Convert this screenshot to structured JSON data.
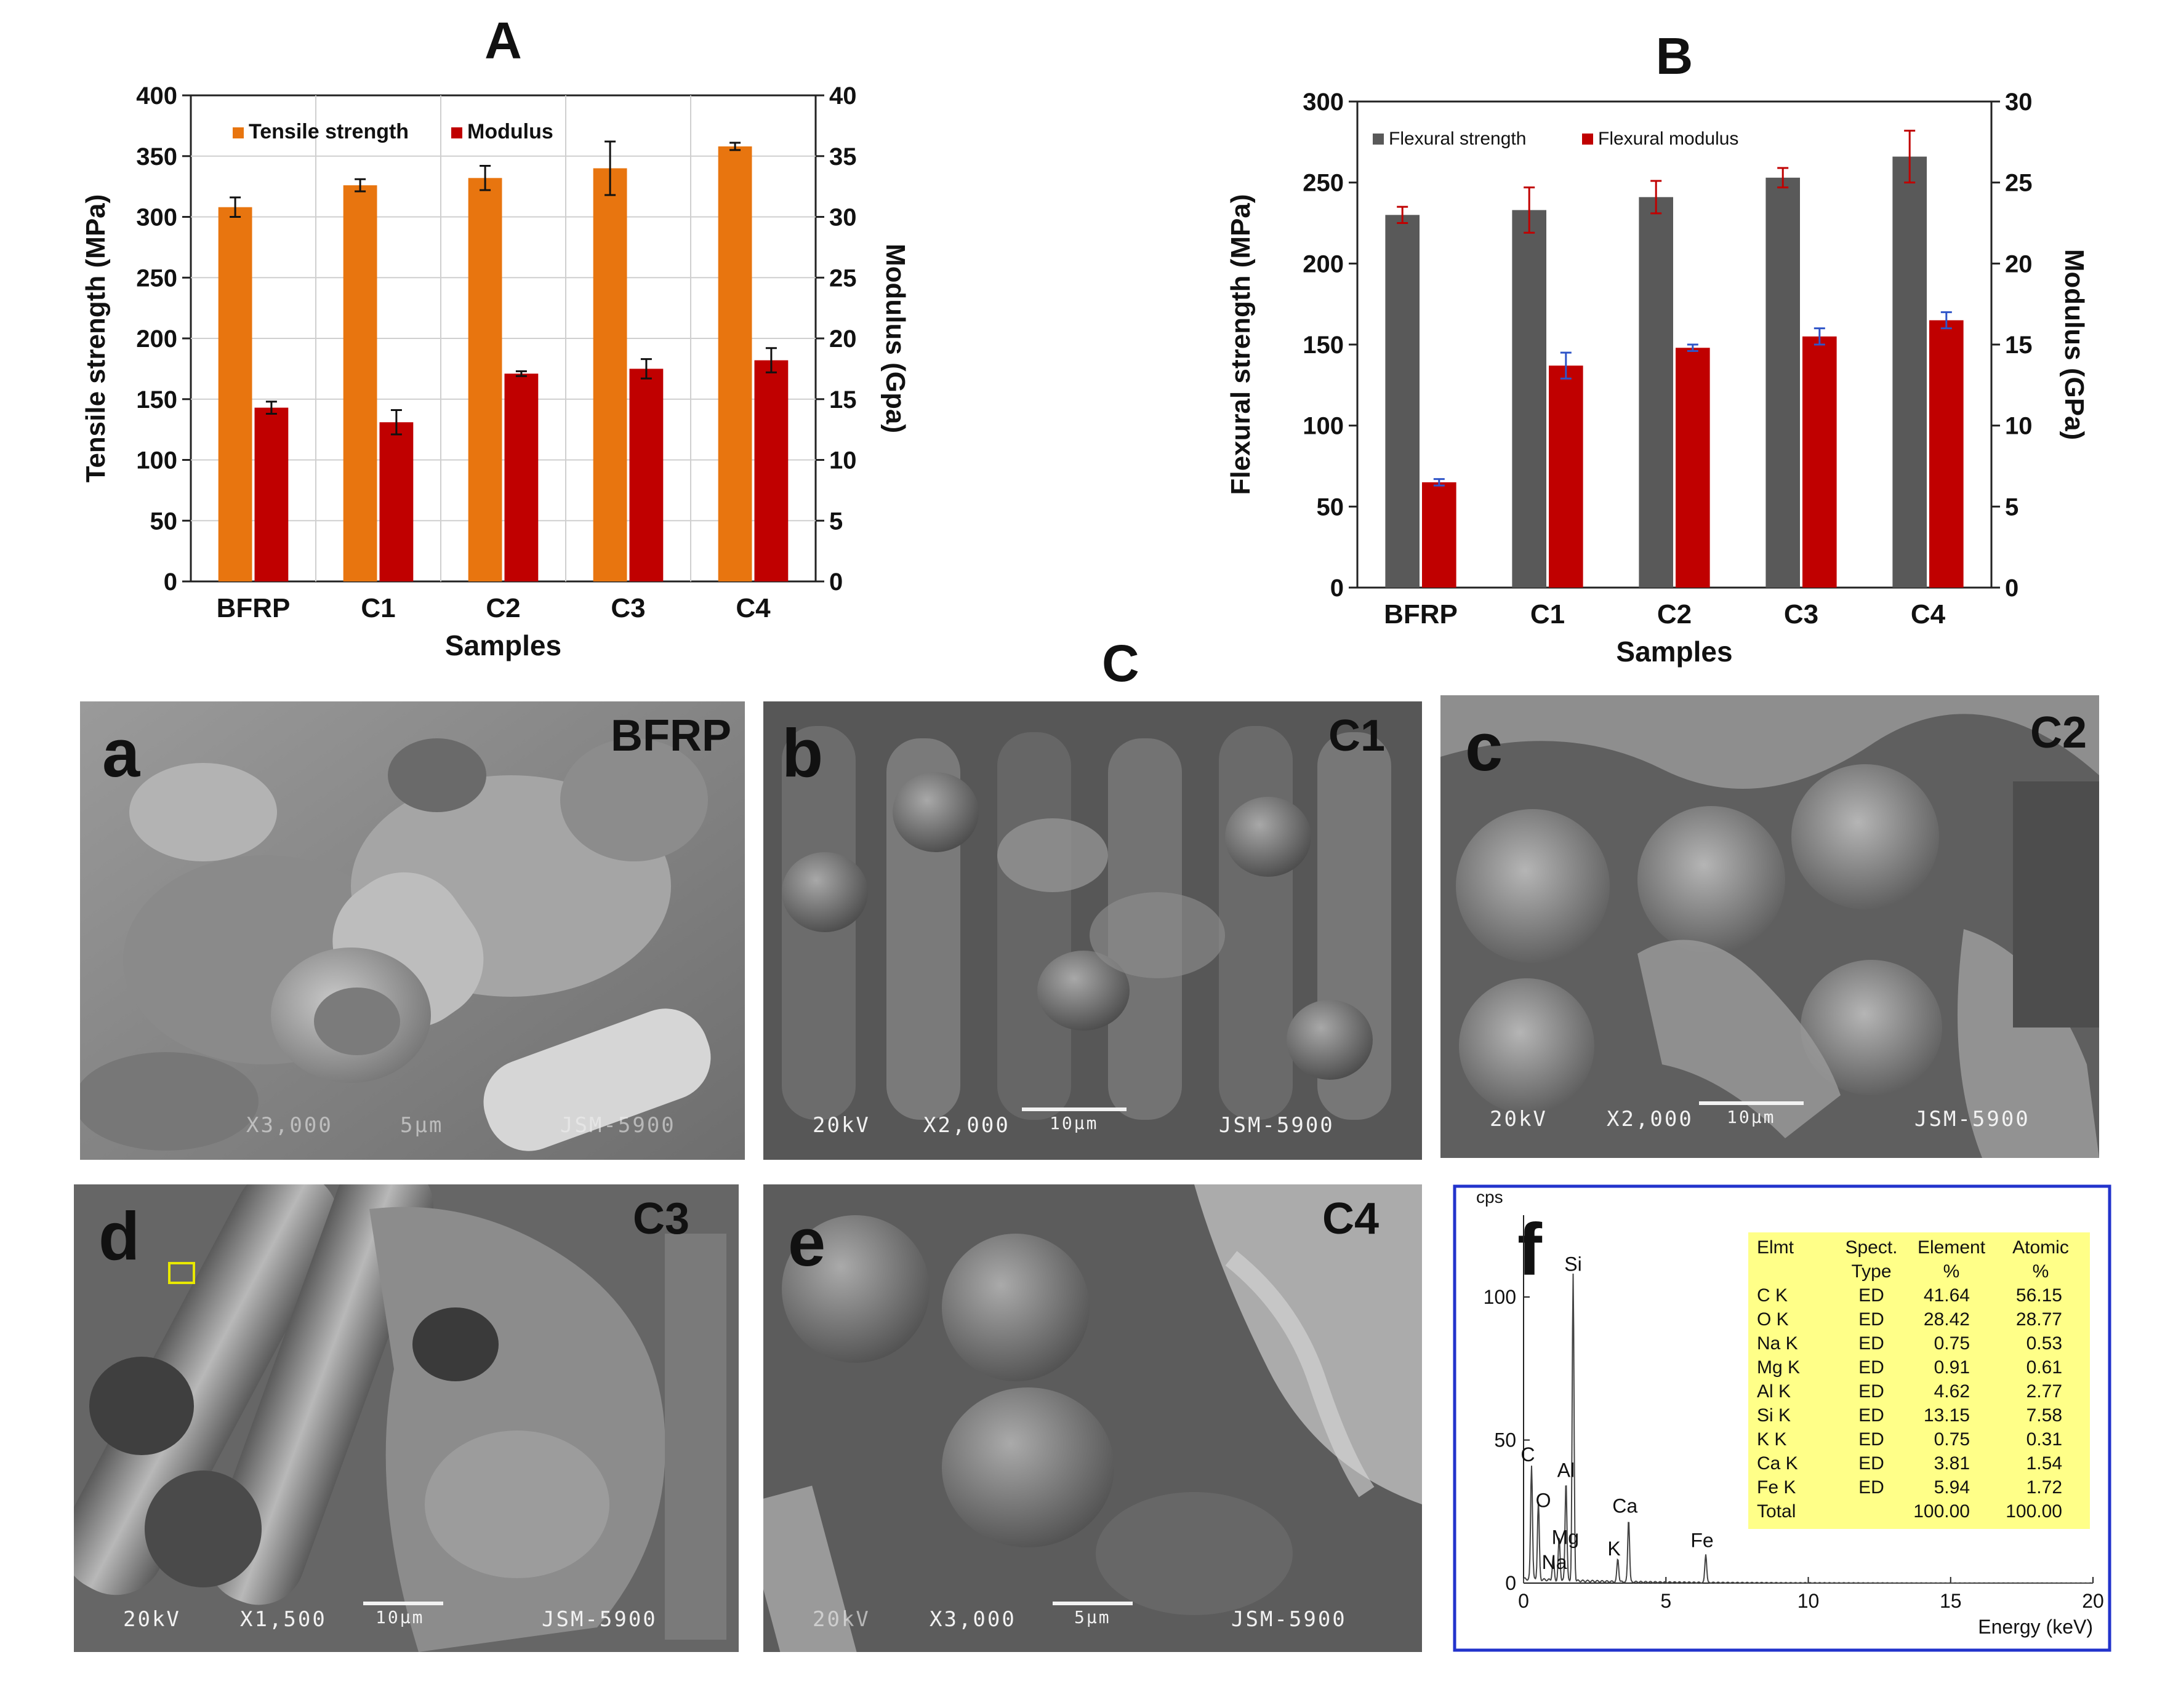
{
  "figure": {
    "panel_labels": [
      "A",
      "B",
      "C"
    ]
  },
  "chart_data": [
    {
      "type": "bar",
      "panel": "A",
      "categories": [
        "BFRP",
        "C1",
        "C2",
        "C3",
        "C4"
      ],
      "xlabel": "Samples",
      "ylabel_left": "Tensile strength (MPa)",
      "ylabel_right": "Modulus (Gpa)",
      "ylim_left": [
        0,
        400
      ],
      "ylim_right": [
        0,
        40
      ],
      "yticks_left": [
        "0",
        "50",
        "100",
        "150",
        "200",
        "250",
        "300",
        "350",
        "400"
      ],
      "yticks_right": [
        "0",
        "5",
        "10",
        "15",
        "20",
        "25",
        "30",
        "35",
        "40"
      ],
      "legend": "top-left",
      "grid": true,
      "series": [
        {
          "name": "Tensile strength",
          "axis": "left",
          "color": "#E8750F",
          "values": [
            308,
            326,
            332,
            340,
            358
          ],
          "errors": [
            8,
            5,
            10,
            22,
            3
          ]
        },
        {
          "name": "Modulus",
          "axis": "right",
          "color": "#C00000",
          "values": [
            14.3,
            13.1,
            17.1,
            17.5,
            18.2
          ],
          "errors": [
            0.5,
            1.0,
            0.2,
            0.8,
            1.0
          ]
        }
      ]
    },
    {
      "type": "bar",
      "panel": "B",
      "categories": [
        "BFRP",
        "C1",
        "C2",
        "C3",
        "C4"
      ],
      "xlabel": "Samples",
      "ylabel_left": "Flexural strength (MPa)",
      "ylabel_right": "Modulus  (GPa)",
      "ylim_left": [
        0,
        300
      ],
      "ylim_right": [
        0,
        30
      ],
      "yticks_left": [
        "0",
        "50",
        "100",
        "150",
        "200",
        "250",
        "300"
      ],
      "yticks_right": [
        "0",
        "5",
        "10",
        "15",
        "20",
        "25",
        "30"
      ],
      "legend": "top-left",
      "grid": false,
      "series": [
        {
          "name": "Flexural strength",
          "axis": "left",
          "color": "#595959",
          "values": [
            230,
            233,
            241,
            253,
            266
          ],
          "errors": [
            5,
            14,
            10,
            6,
            16
          ]
        },
        {
          "name": "Flexural modulus",
          "axis": "right",
          "color": "#C00000",
          "values": [
            6.5,
            13.7,
            14.8,
            15.5,
            16.5
          ],
          "errors": [
            0.2,
            0.8,
            0.2,
            0.5,
            0.5
          ]
        }
      ]
    },
    {
      "type": "line",
      "panel": "f",
      "title": "",
      "ylabel": "cps",
      "xlabel": "Energy (keV)",
      "xlim": [
        0,
        20
      ],
      "ylim": [
        0,
        120
      ],
      "xticks": [
        "0",
        "5",
        "10",
        "15",
        "20"
      ],
      "yticks": [
        "0",
        "50",
        "100"
      ],
      "peaks": [
        {
          "label": "C",
          "x": 0.28,
          "y": 40
        },
        {
          "label": "O",
          "x": 0.52,
          "y": 27
        },
        {
          "label": "Na",
          "x": 1.04,
          "y": 8
        },
        {
          "label": "Mg",
          "x": 1.25,
          "y": 15
        },
        {
          "label": "Al",
          "x": 1.49,
          "y": 35
        },
        {
          "label": "Si",
          "x": 1.74,
          "y": 107
        },
        {
          "label": "K",
          "x": 3.31,
          "y": 8
        },
        {
          "label": "Ca",
          "x": 3.69,
          "y": 22
        },
        {
          "label": "Fe",
          "x": 6.4,
          "y": 10
        }
      ],
      "table": {
        "headers": [
          [
            "Elmt",
            "Spect.",
            "Element",
            "Atomic"
          ],
          [
            "",
            "Type",
            "%",
            "%"
          ]
        ],
        "rows": [
          [
            "C  K",
            "ED",
            "41.64",
            "56.15"
          ],
          [
            "O  K",
            "ED",
            "28.42",
            "28.77"
          ],
          [
            "Na K",
            "ED",
            "0.75",
            "0.53"
          ],
          [
            "Mg K",
            "ED",
            "0.91",
            "0.61"
          ],
          [
            "Al K",
            "ED",
            "4.62",
            "2.77"
          ],
          [
            "Si K",
            "ED",
            "13.15",
            "7.58"
          ],
          [
            "K  K",
            "ED",
            "0.75",
            "0.31"
          ],
          [
            "Ca K",
            "ED",
            "3.81",
            "1.54"
          ],
          [
            "Fe K",
            "ED",
            "5.94",
            "1.72"
          ],
          [
            "Total",
            "",
            "100.00",
            "100.00"
          ]
        ]
      }
    }
  ],
  "sem_panels": [
    {
      "letter": "a",
      "sample": "BFRP",
      "kv": "",
      "mag": "X3,000",
      "scale": "5μm",
      "model": "JSM-5900"
    },
    {
      "letter": "b",
      "sample": "C1",
      "kv": "20kV",
      "mag": "X2,000",
      "scale": "10μm",
      "model": "JSM-5900"
    },
    {
      "letter": "c",
      "sample": "C2",
      "kv": "20kV",
      "mag": "X2,000",
      "scale": "10μm",
      "model": "JSM-5900"
    },
    {
      "letter": "d",
      "sample": "C3",
      "kv": "20kV",
      "mag": "X1,500",
      "scale": "10μm",
      "model": "JSM-5900"
    },
    {
      "letter": "e",
      "sample": "C4",
      "kv": "20kV",
      "mag": "X3,000",
      "scale": "5μm",
      "model": "JSM-5900"
    }
  ],
  "colors": {
    "orange": "#E8750F",
    "red": "#C00000",
    "dark_gray": "#595959",
    "table_bg": "#FFFF88",
    "eds_border": "#2233CC"
  }
}
